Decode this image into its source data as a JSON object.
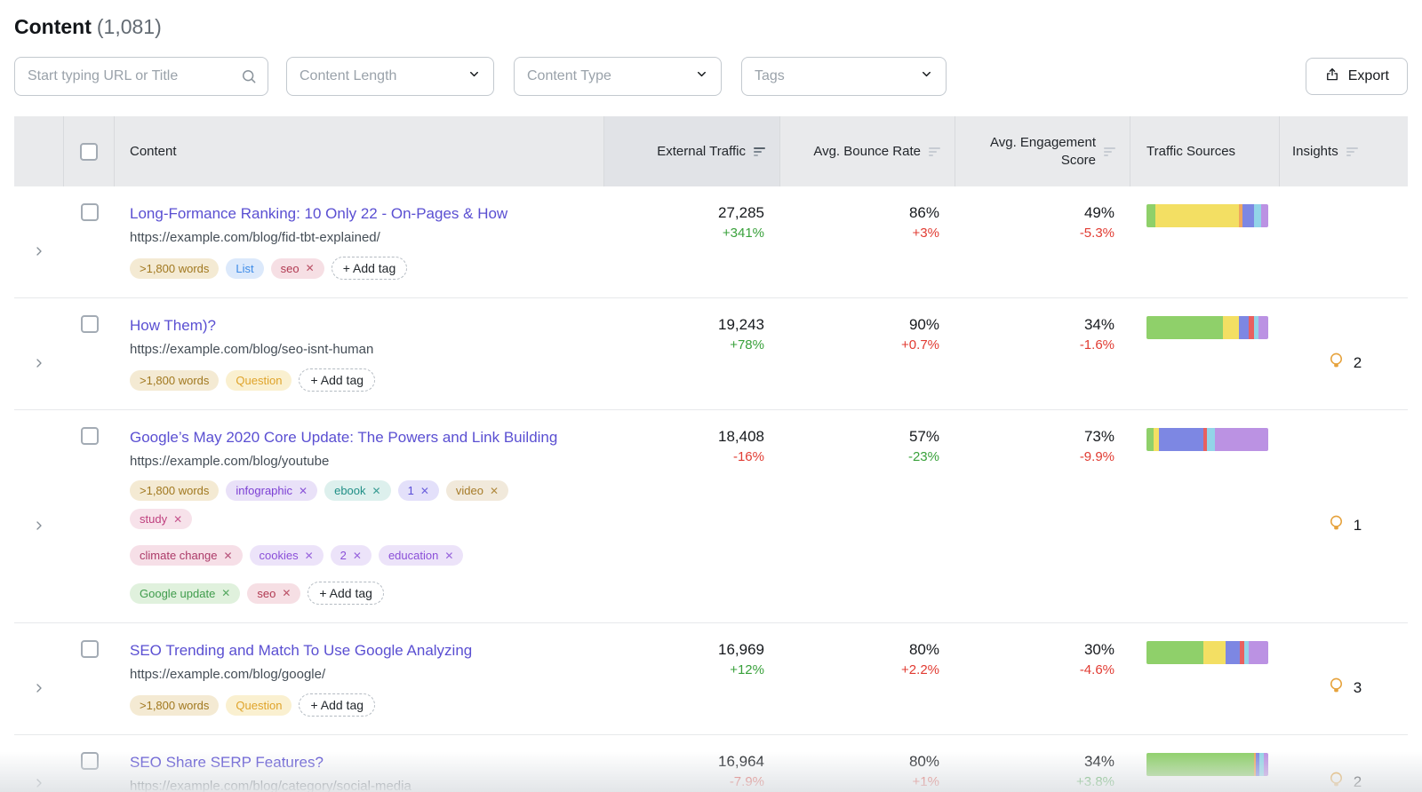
{
  "page": {
    "title": "Content",
    "count": "(1,081)"
  },
  "filters": {
    "search_placeholder": "Start typing URL or Title",
    "length_label": "Content Length",
    "type_label": "Content Type",
    "tags_label": "Tags",
    "export_label": "Export"
  },
  "table": {
    "headers": {
      "content": "Content",
      "external_traffic": "External Traffic",
      "bounce_rate": "Avg. Bounce Rate",
      "engagement": "Avg. Engagement Score",
      "traffic_sources": "Traffic Sources",
      "insights": "Insights"
    },
    "add_tag_label": "+ Add tag",
    "rows": [
      {
        "title": "Long-Formance Ranking: 10 Only 22 - On-Pages & How",
        "url": "https://example.com/blog/fid-tbt-explained/",
        "tags": [
          {
            "label": ">1,800 words",
            "color": "amber",
            "removable": false
          },
          {
            "label": "List",
            "color": "blue",
            "removable": false
          },
          {
            "label": "seo",
            "color": "rose",
            "removable": true
          }
        ],
        "show_add_tag": true,
        "external_traffic": {
          "value": "27,285",
          "change": "+341%",
          "change_color": "green"
        },
        "bounce_rate": {
          "value": "86%",
          "change": "+3%",
          "change_color": "red"
        },
        "engagement_score": {
          "value": "49%",
          "change": "-5.3%",
          "change_color": "red"
        },
        "traffic_sources": [
          {
            "color": "green",
            "pct": 7
          },
          {
            "color": "yellow",
            "pct": 69
          },
          {
            "color": "orange",
            "pct": 3
          },
          {
            "color": "indigo",
            "pct": 9
          },
          {
            "color": "cyan",
            "pct": 6
          },
          {
            "color": "purple",
            "pct": 6
          }
        ],
        "insights_count": null
      },
      {
        "title": "How Them)?",
        "url": "https://example.com/blog/seo-isnt-human",
        "tags": [
          {
            "label": ">1,800 words",
            "color": "amber",
            "removable": false
          },
          {
            "label": "Question",
            "color": "yellow",
            "removable": false
          }
        ],
        "show_add_tag": true,
        "external_traffic": {
          "value": "19,243",
          "change": "+78%",
          "change_color": "green"
        },
        "bounce_rate": {
          "value": "90%",
          "change": "+0.7%",
          "change_color": "red"
        },
        "engagement_score": {
          "value": "34%",
          "change": "-1.6%",
          "change_color": "red"
        },
        "traffic_sources": [
          {
            "color": "green",
            "pct": 63
          },
          {
            "color": "yellow",
            "pct": 13
          },
          {
            "color": "indigo",
            "pct": 8
          },
          {
            "color": "red",
            "pct": 4
          },
          {
            "color": "cyan",
            "pct": 4
          },
          {
            "color": "purple",
            "pct": 8
          }
        ],
        "insights_count": "2"
      },
      {
        "title": "Google’s May 2020 Core Update: The Powers and Link Building",
        "url": "https://example.com/blog/youtube",
        "tags": [
          {
            "label": ">1,800 words",
            "color": "amber",
            "removable": false
          },
          {
            "label": "infographic",
            "color": "purple",
            "removable": true
          },
          {
            "label": "ebook",
            "color": "teal",
            "removable": true
          },
          {
            "label": "1",
            "color": "indigo",
            "removable": true
          },
          {
            "label": "video",
            "color": "tan",
            "removable": true
          },
          {
            "label": "study",
            "color": "magenta",
            "removable": true,
            "break_after": true
          },
          {
            "label": "climate change",
            "color": "berry",
            "removable": true
          },
          {
            "label": "cookies",
            "color": "lavender",
            "removable": true
          },
          {
            "label": "2",
            "color": "lavender",
            "removable": true
          },
          {
            "label": "education",
            "color": "lavender",
            "removable": true,
            "break_after": true
          },
          {
            "label": "Google update",
            "color": "green",
            "removable": true
          },
          {
            "label": "seo",
            "color": "rose",
            "removable": true
          }
        ],
        "show_add_tag": true,
        "external_traffic": {
          "value": "18,408",
          "change": "-16%",
          "change_color": "red"
        },
        "bounce_rate": {
          "value": "57%",
          "change": "-23%",
          "change_color": "green"
        },
        "engagement_score": {
          "value": "73%",
          "change": "-9.9%",
          "change_color": "red"
        },
        "traffic_sources": [
          {
            "color": "green",
            "pct": 6
          },
          {
            "color": "yellow",
            "pct": 4
          },
          {
            "color": "indigo",
            "pct": 37
          },
          {
            "color": "red",
            "pct": 3
          },
          {
            "color": "cyan",
            "pct": 6
          },
          {
            "color": "purple",
            "pct": 44
          }
        ],
        "insights_count": "1"
      },
      {
        "title": "SEO Trending and Match To Use Google Analyzing",
        "url": "https://example.com/blog/google/",
        "tags": [
          {
            "label": ">1,800 words",
            "color": "amber",
            "removable": false
          },
          {
            "label": "Question",
            "color": "yellow",
            "removable": false
          }
        ],
        "show_add_tag": true,
        "external_traffic": {
          "value": "16,969",
          "change": "+12%",
          "change_color": "green"
        },
        "bounce_rate": {
          "value": "80%",
          "change": "+2.2%",
          "change_color": "red"
        },
        "engagement_score": {
          "value": "30%",
          "change": "-4.6%",
          "change_color": "red"
        },
        "traffic_sources": [
          {
            "color": "green",
            "pct": 47
          },
          {
            "color": "yellow",
            "pct": 18
          },
          {
            "color": "indigo",
            "pct": 12
          },
          {
            "color": "red",
            "pct": 3
          },
          {
            "color": "cyan",
            "pct": 4
          },
          {
            "color": "purple",
            "pct": 16
          }
        ],
        "insights_count": "3"
      },
      {
        "title": "SEO Share SERP Features?",
        "url": "https://example.com/blog/category/social-media",
        "tags": [],
        "show_add_tag": false,
        "external_traffic": {
          "value": "16,964",
          "change": "-7.9%",
          "change_color": "red"
        },
        "bounce_rate": {
          "value": "80%",
          "change": "+1%",
          "change_color": "red"
        },
        "engagement_score": {
          "value": "34%",
          "change": "+3.8%",
          "change_color": "green"
        },
        "traffic_sources": [
          {
            "color": "green",
            "pct": 88
          },
          {
            "color": "orange",
            "pct": 2
          },
          {
            "color": "indigo",
            "pct": 3
          },
          {
            "color": "cyan",
            "pct": 3
          },
          {
            "color": "purple",
            "pct": 4
          }
        ],
        "insights_count": "2"
      }
    ]
  },
  "colors": {
    "link": "#5a4fd2",
    "positive": "#39a13b",
    "negative": "#e13b32",
    "insight_bulb": "#e6a23c",
    "bar": {
      "green": "#8fd06a",
      "yellow": "#f3df63",
      "orange": "#efa65f",
      "indigo": "#7d87e3",
      "red": "#e8605f",
      "cyan": "#92d4e8",
      "purple": "#bb92e3"
    },
    "tag": {
      "amber": {
        "bg": "#f4ead3",
        "fg": "#a1781f"
      },
      "yellow": {
        "bg": "#faf0d0",
        "fg": "#dfa32a"
      },
      "blue": {
        "bg": "#dce9fb",
        "fg": "#3d8be8"
      },
      "rose": {
        "bg": "#f6dfe4",
        "fg": "#b13a52"
      },
      "purple": {
        "bg": "#e9e1f8",
        "fg": "#7c3fd4"
      },
      "teal": {
        "bg": "#ddf0ed",
        "fg": "#208f86"
      },
      "indigo": {
        "bg": "#e3e0fa",
        "fg": "#5a4ed9"
      },
      "tan": {
        "bg": "#f1e9db",
        "fg": "#a67b28"
      },
      "magenta": {
        "bg": "#f7e2ea",
        "fg": "#bf3f7e"
      },
      "berry": {
        "bg": "#f6dfe7",
        "fg": "#ac3a68"
      },
      "lavender": {
        "bg": "#ece3f9",
        "fg": "#8a4fd8"
      },
      "green": {
        "bg": "#e0f1dd",
        "fg": "#3f9c4c"
      }
    }
  }
}
